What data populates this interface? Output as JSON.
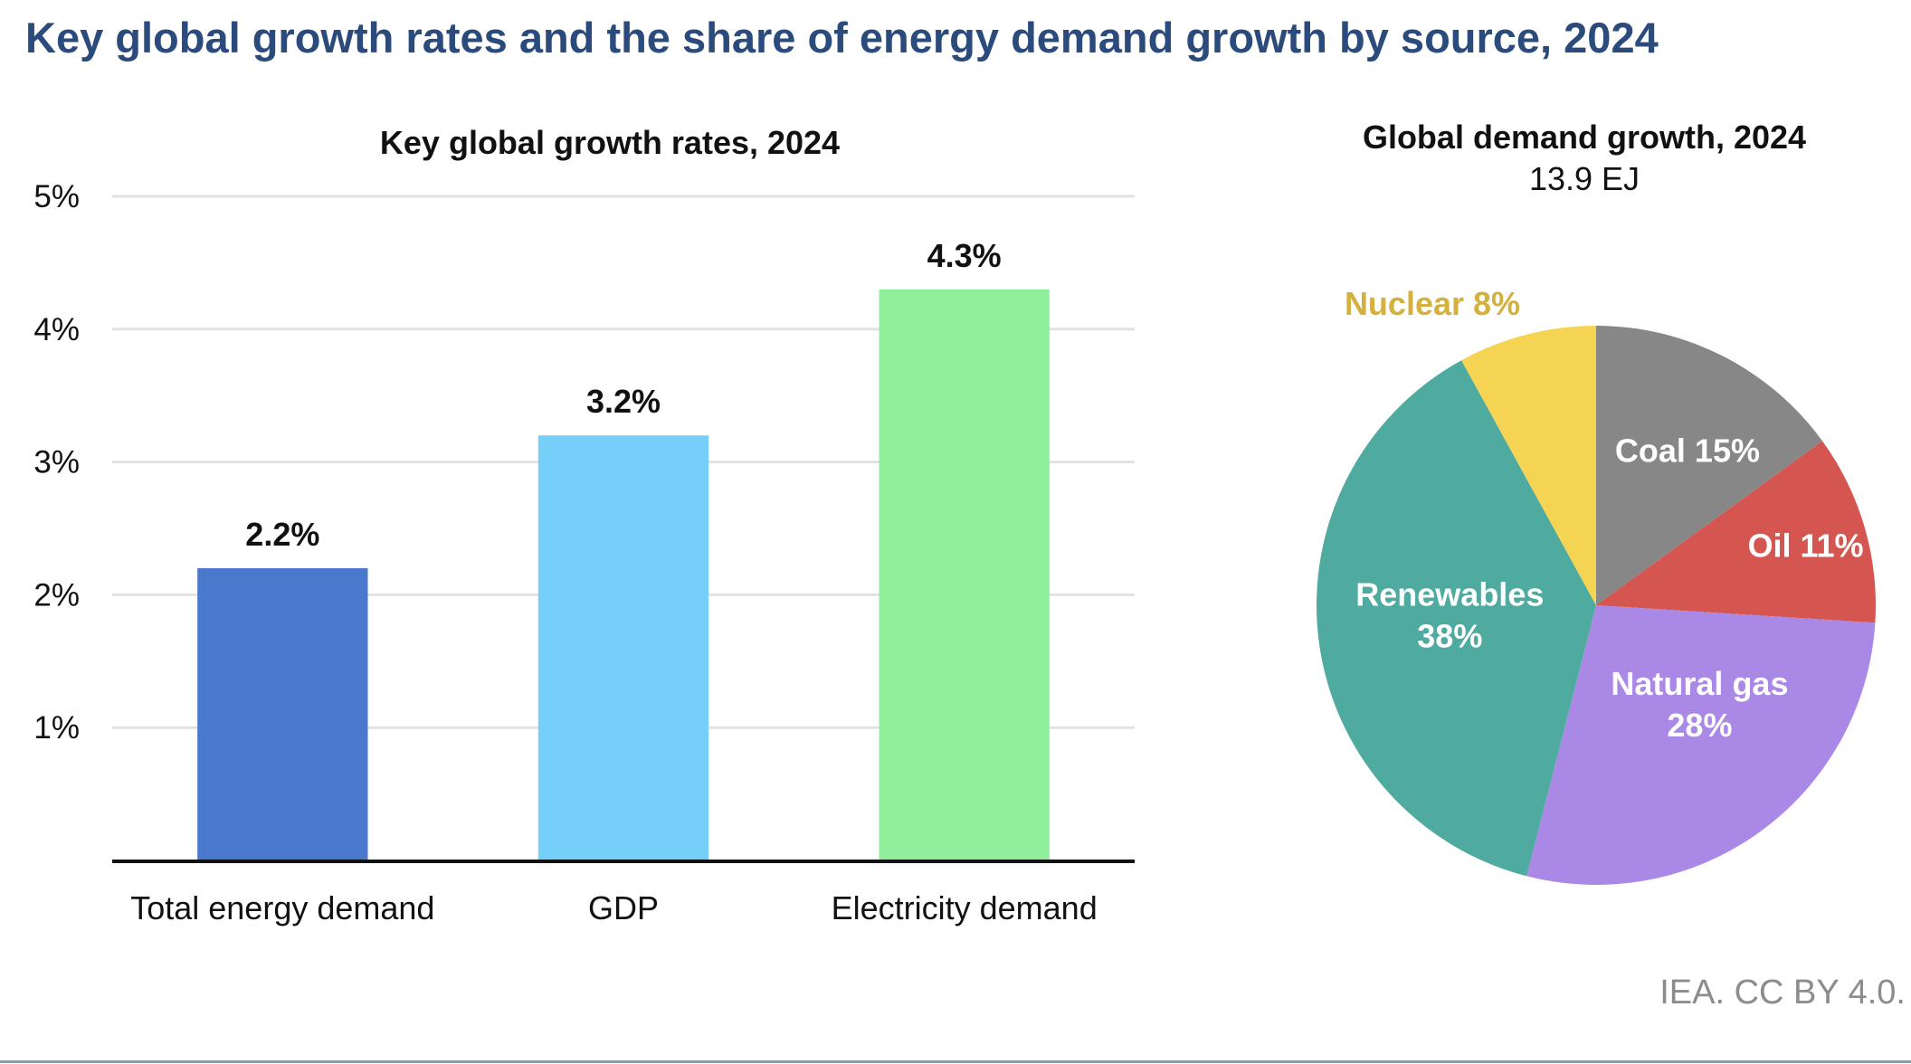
{
  "title": "Key global growth rates and the share of energy demand growth by source, 2024",
  "footer": "IEA. CC BY 4.0.",
  "chart_data": [
    {
      "type": "bar",
      "title": "Key global growth rates, 2024",
      "xlabel": "",
      "ylabel": "",
      "categories": [
        "Total energy demand",
        "GDP",
        "Electricity demand"
      ],
      "values": [
        2.2,
        3.2,
        4.3
      ],
      "value_labels": [
        "2.2%",
        "3.2%",
        "4.3%"
      ],
      "colors": [
        "#4a78cc",
        "#75cff9",
        "#90ef9b"
      ],
      "ylim": [
        0,
        5
      ],
      "yticks": [
        1,
        2,
        3,
        4,
        5
      ],
      "ytick_labels": [
        "1%",
        "2%",
        "3%",
        "4%",
        "5%"
      ],
      "grid": true,
      "legend": "none"
    },
    {
      "type": "pie",
      "title": "Global demand growth, 2024",
      "subtitle": "13.9 EJ",
      "start": "top",
      "direction": "clockwise",
      "slices": [
        {
          "name": "Coal",
          "value": 15,
          "label_lines": [
            "Coal 15%"
          ],
          "color": "#878787",
          "label_color": "#ffffff"
        },
        {
          "name": "Oil",
          "value": 11,
          "label_lines": [
            "Oil 11%"
          ],
          "color": "#d55650",
          "label_color": "#ffffff"
        },
        {
          "name": "Natural gas",
          "value": 28,
          "label_lines": [
            "Natural gas",
            "28%"
          ],
          "color": "#aa88e6",
          "label_color": "#ffffff"
        },
        {
          "name": "Renewables",
          "value": 38,
          "label_lines": [
            "Renewables",
            "38%"
          ],
          "color": "#4faaa0",
          "label_color": "#ffffff"
        },
        {
          "name": "Nuclear",
          "value": 8,
          "label_lines": [
            "Nuclear 8%"
          ],
          "color": "#f5d453",
          "label_color": "#d4b13e"
        }
      ],
      "legend": "none"
    }
  ]
}
